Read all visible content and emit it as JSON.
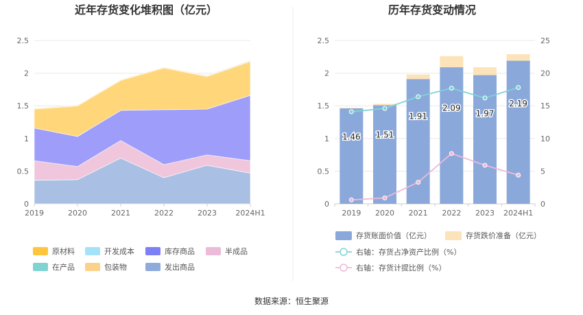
{
  "source": "数据来源：恒生聚源",
  "chart_data": [
    {
      "type": "area",
      "stacked": true,
      "title": "近年存货变化堆积图（亿元）",
      "categories": [
        "2019",
        "2020",
        "2021",
        "2022",
        "2023",
        "2024H1"
      ],
      "ylim": [
        0,
        2.5
      ],
      "yticks": [
        "0",
        "0.5",
        "1",
        "1.5",
        "2",
        "2.5"
      ],
      "grid": true,
      "legend_position": "bottom",
      "series": [
        {
          "name": "发出商品",
          "color": "#a9c0e4",
          "values": [
            0.36,
            0.37,
            0.7,
            0.4,
            0.59,
            0.47
          ]
        },
        {
          "name": "半成品",
          "color": "#f0c6dd",
          "values": [
            0.3,
            0.2,
            0.27,
            0.2,
            0.16,
            0.19
          ]
        },
        {
          "name": "库存商品",
          "color": "#9e9efa",
          "values": [
            0.5,
            0.46,
            0.46,
            0.84,
            0.7,
            1.0
          ]
        },
        {
          "name": "原材料",
          "color": "#ffd77a",
          "values": [
            0.29,
            0.47,
            0.46,
            0.64,
            0.5,
            0.52
          ]
        },
        {
          "name": "开发成本",
          "color": "#a8dff7",
          "values": [
            0,
            0,
            0,
            0,
            0.01,
            0.01
          ]
        },
        {
          "name": "在产品",
          "color": "#8fd6d4",
          "values": [
            0,
            0,
            0,
            0,
            0,
            0
          ]
        },
        {
          "name": "包装物",
          "color": "#fbd49a",
          "values": [
            0.01,
            0.01,
            0.01,
            0.01,
            0.01,
            0.01
          ]
        }
      ],
      "legend": [
        {
          "name": "原材料",
          "color": "#ffc53d"
        },
        {
          "name": "开发成本",
          "color": "#a5e2f9"
        },
        {
          "name": "库存商品",
          "color": "#7d7ff5"
        },
        {
          "name": "半成品",
          "color": "#ebbbd8"
        },
        {
          "name": "在产品",
          "color": "#7fd3d1"
        },
        {
          "name": "包装物",
          "color": "#fbd28a"
        },
        {
          "name": "发出商品",
          "color": "#8fabdc"
        }
      ]
    },
    {
      "type": "bar",
      "title": "历年存货变动情况",
      "categories": [
        "2019",
        "2020",
        "2021",
        "2022",
        "2023",
        "2024H1"
      ],
      "ylim": [
        0,
        2.5
      ],
      "yticks": [
        "0",
        "0.5",
        "1",
        "1.5",
        "2",
        "2.5"
      ],
      "y2lim": [
        0,
        25
      ],
      "y2ticks": [
        "0",
        "5",
        "10",
        "15",
        "20",
        "25"
      ],
      "grid": true,
      "legend_position": "bottom",
      "bars": [
        {
          "name": "存货账面价值（亿元）",
          "color": "#8aa9da",
          "values": [
            1.46,
            1.51,
            1.91,
            2.09,
            1.97,
            2.19
          ],
          "labels": [
            "1.46",
            "1.51",
            "1.91",
            "2.09",
            "1.97",
            "2.19"
          ]
        },
        {
          "name": "存货跌价准备（亿元）",
          "color": "#fde3ba",
          "values": [
            0.01,
            0.02,
            0.07,
            0.17,
            0.12,
            0.1
          ]
        }
      ],
      "lines": [
        {
          "name": "右轴：存货占净资产比例（%）",
          "color": "#7fd3d8",
          "axis": "right",
          "values": [
            14.1,
            14.6,
            16.4,
            17.7,
            16.2,
            17.8
          ]
        },
        {
          "name": "右轴：存货计提比例（%）",
          "color": "#efb8d8",
          "axis": "right",
          "values": [
            0.6,
            0.9,
            3.3,
            7.7,
            5.9,
            4.4
          ]
        }
      ]
    }
  ]
}
